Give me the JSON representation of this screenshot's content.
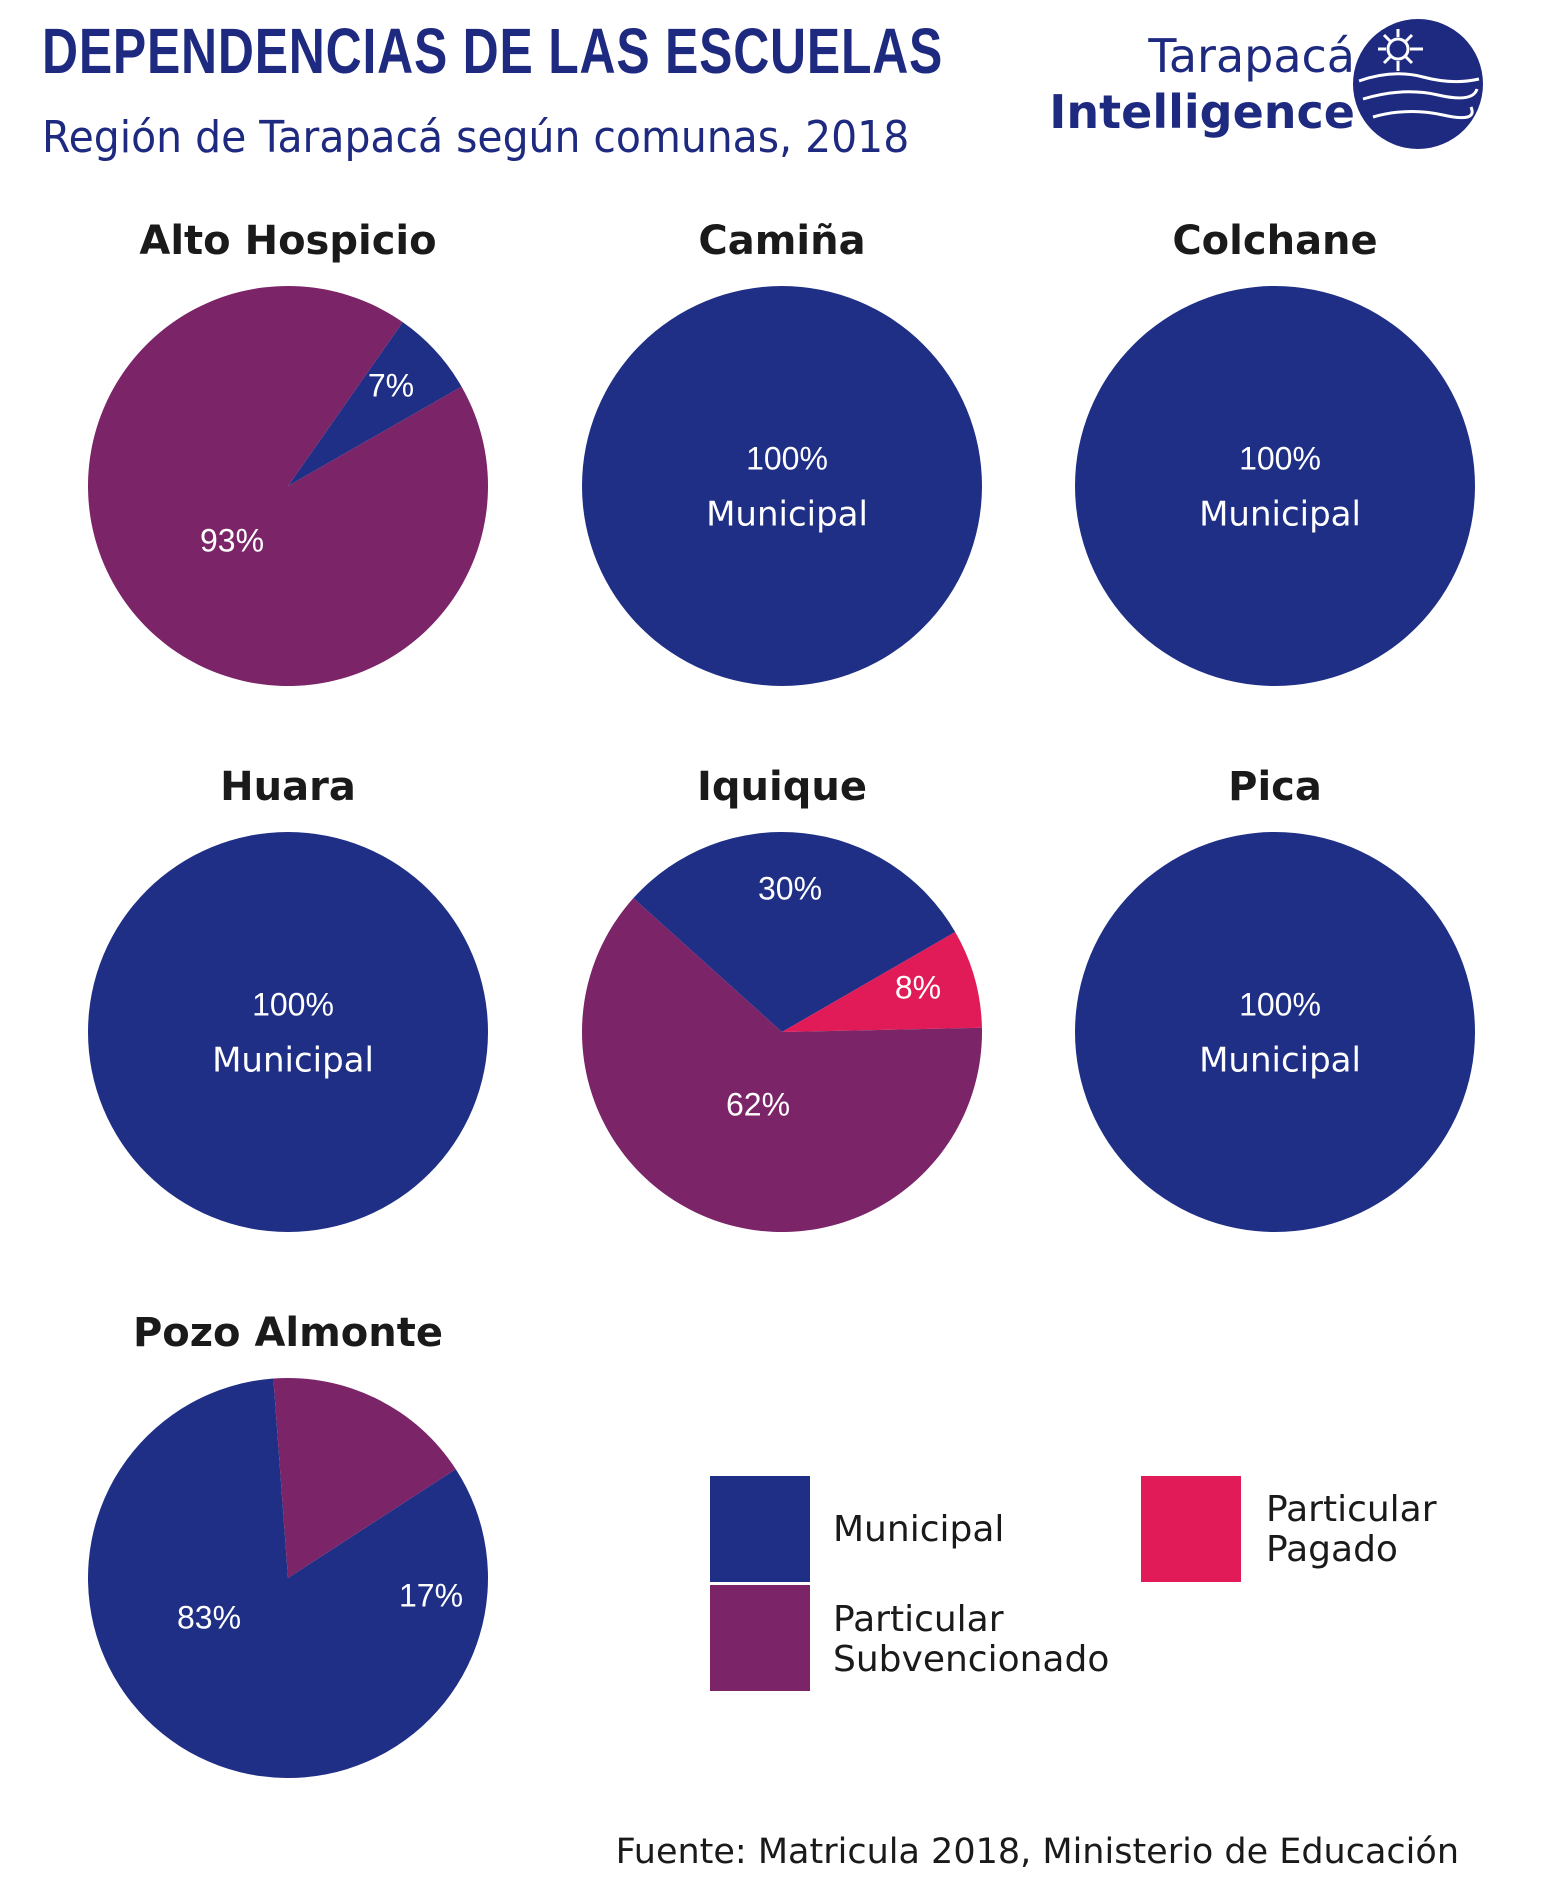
{
  "header": {
    "title": "DEPENDENCIAS DE LAS ESCUELAS",
    "subtitle": "Región de Tarapacá según comunas, 2018",
    "brand_line1": "Tarapacá",
    "brand_line2": "Intelligence",
    "logo_icon": "tarapaca-intelligence-logo-icon"
  },
  "colors": {
    "Municipal": "#1f2f85",
    "Particular Subvencionado": "#7b2468",
    "Particular Pagado": "#e11b57"
  },
  "chart_data": [
    {
      "type": "pie",
      "title": "Alto Hospicio",
      "segments": [
        {
          "category": "Municipal",
          "value": 7,
          "label": "7%"
        },
        {
          "category": "Particular Subvencionado",
          "value": 93,
          "label": "93%"
        }
      ]
    },
    {
      "type": "pie",
      "title": "Camiña",
      "segments": [
        {
          "category": "Municipal",
          "value": 100,
          "label": "100%",
          "label2": "Municipal"
        }
      ]
    },
    {
      "type": "pie",
      "title": "Colchane",
      "segments": [
        {
          "category": "Municipal",
          "value": 100,
          "label": "100%",
          "label2": "Municipal"
        }
      ]
    },
    {
      "type": "pie",
      "title": "Huara",
      "segments": [
        {
          "category": "Municipal",
          "value": 100,
          "label": "100%",
          "label2": "Municipal"
        }
      ]
    },
    {
      "type": "pie",
      "title": "Iquique",
      "segments": [
        {
          "category": "Municipal",
          "value": 30,
          "label": "30%"
        },
        {
          "category": "Particular Pagado",
          "value": 8,
          "label": "8%"
        },
        {
          "category": "Particular Subvencionado",
          "value": 62,
          "label": "62%"
        }
      ]
    },
    {
      "type": "pie",
      "title": "Pica",
      "segments": [
        {
          "category": "Municipal",
          "value": 100,
          "label": "100%",
          "label2": "Municipal"
        }
      ]
    },
    {
      "type": "pie",
      "title": "Pozo Almonte",
      "segments": [
        {
          "category": "Municipal",
          "value": 83,
          "label": "83%"
        },
        {
          "category": "Particular Subvencionado",
          "value": 17,
          "label": "17%"
        }
      ]
    }
  ],
  "legend": {
    "items": [
      {
        "category": "Municipal",
        "lines": [
          "Municipal"
        ]
      },
      {
        "category": "Particular Subvencionado",
        "lines": [
          "Particular",
          "Subvencionado"
        ]
      },
      {
        "category": "Particular Pagado",
        "lines": [
          "Particular",
          "Pagado"
        ]
      }
    ]
  },
  "source": "Fuente: Matricula 2018, Ministerio de Educación"
}
